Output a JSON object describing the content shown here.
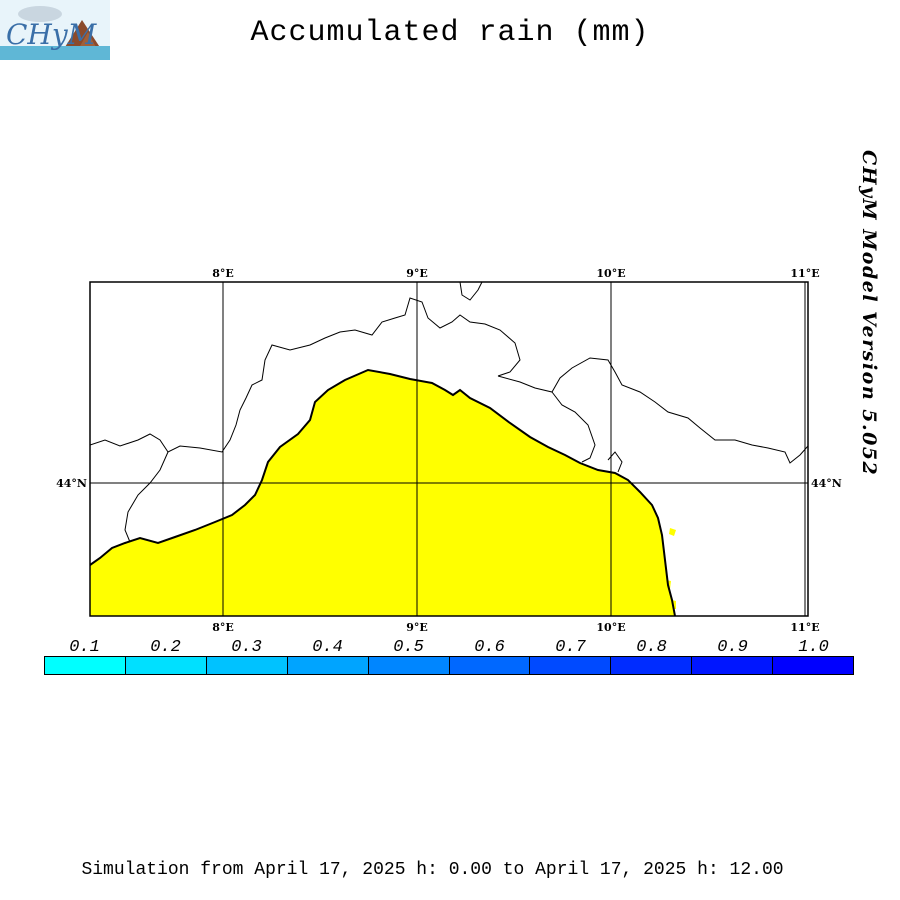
{
  "header": {
    "title": "Accumulated rain (mm)",
    "logo_text": "CHyM",
    "version_text": "CHyM Model Version 5.052"
  },
  "map": {
    "lon_ticks": [
      "8°E",
      "9°E",
      "10°E",
      "11°E"
    ],
    "lat_ticks": [
      "44°N"
    ],
    "colors": {
      "precip_area": "#ffff00",
      "land": "#ffffff",
      "grid": "#000000"
    }
  },
  "legend": {
    "labels": [
      "0.1",
      "0.2",
      "0.3",
      "0.4",
      "0.5",
      "0.6",
      "0.7",
      "0.8",
      "0.9",
      "1.0"
    ],
    "colors": [
      "#00ffff",
      "#00e0ff",
      "#00c2ff",
      "#00a4ff",
      "#0086ff",
      "#0068ff",
      "#004aff",
      "#002cff",
      "#0016ff",
      "#0000ff"
    ]
  },
  "footer": {
    "simulation": "Simulation from April 17, 2025 h: 0.00 to April 17, 2025 h: 12.00"
  }
}
